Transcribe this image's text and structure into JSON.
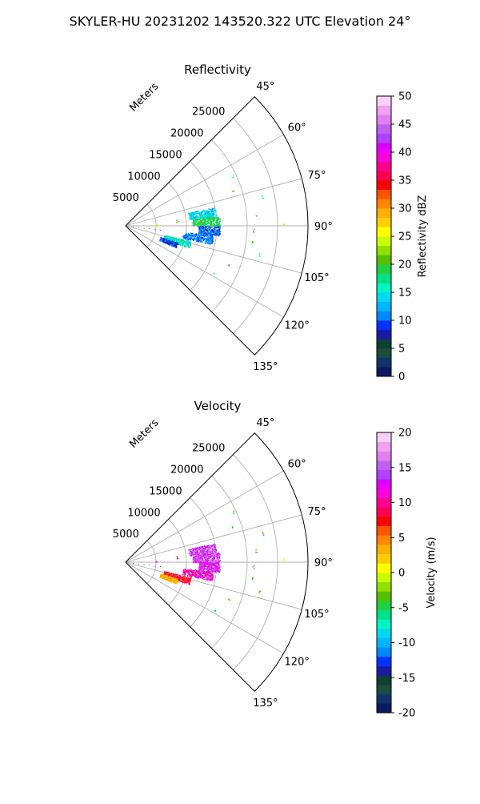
{
  "page": {
    "title": "SKYLER-HU  20231202  143520.322 UTC Elevation 24°"
  },
  "chart_data": [
    {
      "type": "polar-sector",
      "title": "Reflectivity",
      "radial_label": "Meters",
      "radial_ticks": [
        5000,
        10000,
        15000,
        20000,
        25000
      ],
      "radial_range": [
        0,
        30000
      ],
      "angle_ticks": [
        "45°",
        "60°",
        "75°",
        "90°",
        "105°",
        "120°",
        "135°"
      ],
      "angle_range_deg": [
        45,
        135
      ],
      "grid": true,
      "colorbar": {
        "label": "Reflectivity dBZ",
        "range": [
          0,
          50
        ],
        "ticks": [
          0,
          5,
          10,
          15,
          20,
          25,
          30,
          35,
          40,
          45,
          50
        ],
        "colors": [
          "#0d1a5e",
          "#12326b",
          "#1a4d3a",
          "#103e30",
          "#1a1aa8",
          "#0033ff",
          "#0088ff",
          "#00b4ff",
          "#00d8f0",
          "#00f5c0",
          "#00e088",
          "#22d040",
          "#55c000",
          "#90e000",
          "#c8ff00",
          "#ffff00",
          "#ffd000",
          "#ffb000",
          "#ff8800",
          "#ff5500",
          "#ff0000",
          "#ff0050",
          "#ff0090",
          "#ff00d8",
          "#e000ff",
          "#b040ff",
          "#c060f0",
          "#e080f0",
          "#f0a0f0",
          "#f8d0f8"
        ]
      },
      "echo_regions": [
        {
          "az_deg": [
            78,
            84
          ],
          "range_m": [
            10500,
            15000
          ],
          "value": 14
        },
        {
          "az_deg": [
            84,
            90
          ],
          "range_m": [
            11000,
            15500
          ],
          "value": 19
        },
        {
          "az_deg": [
            90,
            96
          ],
          "range_m": [
            12000,
            15500
          ],
          "value": 10
        },
        {
          "az_deg": [
            96,
            102
          ],
          "range_m": [
            9500,
            14500
          ],
          "value": 11
        },
        {
          "az_deg": [
            103,
            109
          ],
          "range_m": [
            6500,
            11000
          ],
          "value": 16
        },
        {
          "az_deg": [
            108,
            113
          ],
          "range_m": [
            6000,
            9000
          ],
          "value": 9
        }
      ],
      "scattered_echoes": [
        {
          "az_deg": 65,
          "range_m": 19500,
          "value": 16
        },
        {
          "az_deg": 72,
          "range_m": 18500,
          "value": 20
        },
        {
          "az_deg": 78,
          "range_m": 23000,
          "value": 16
        },
        {
          "az_deg": 85,
          "range_m": 21500,
          "value": 16
        },
        {
          "az_deg": 89,
          "range_m": 26000,
          "value": 24
        },
        {
          "az_deg": 92,
          "range_m": 21000,
          "value": 20
        },
        {
          "az_deg": 97,
          "range_m": 21000,
          "value": 20
        },
        {
          "az_deg": 102,
          "range_m": 22500,
          "value": 16
        },
        {
          "az_deg": 110,
          "range_m": 18000,
          "value": 12
        },
        {
          "az_deg": 118,
          "range_m": 16500,
          "value": 16
        },
        {
          "az_deg": 84,
          "range_m": 8500,
          "value": 20
        },
        {
          "az_deg": 88,
          "range_m": 5000,
          "value": 24
        }
      ]
    },
    {
      "type": "polar-sector",
      "title": "Velocity",
      "radial_label": "Meters",
      "radial_ticks": [
        5000,
        10000,
        15000,
        20000,
        25000
      ],
      "radial_range": [
        0,
        30000
      ],
      "angle_ticks": [
        "45°",
        "60°",
        "75°",
        "90°",
        "105°",
        "120°",
        "135°"
      ],
      "angle_range_deg": [
        45,
        135
      ],
      "grid": true,
      "colorbar": {
        "label": "Velocity (m/s)",
        "range": [
          -20,
          20
        ],
        "ticks": [
          -20,
          -15,
          -10,
          -5,
          0,
          5,
          10,
          15,
          20
        ],
        "colors": [
          "#0d1a5e",
          "#12326b",
          "#1a4d3a",
          "#103e30",
          "#1a1aa8",
          "#0033ff",
          "#0088ff",
          "#00b4ff",
          "#00d8f0",
          "#00f5c0",
          "#00e088",
          "#22d040",
          "#55c000",
          "#90e000",
          "#c8ff00",
          "#ffff00",
          "#ffd000",
          "#ffb000",
          "#ff8800",
          "#ff5500",
          "#ff0000",
          "#ff0050",
          "#ff0090",
          "#ff00d8",
          "#e000ff",
          "#b040ff",
          "#c060f0",
          "#e080f0",
          "#f0a0f0",
          "#f8d0f8"
        ]
      },
      "echo_regions": [
        {
          "az_deg": [
            78,
            84
          ],
          "range_m": [
            10500,
            15000
          ],
          "value": 14
        },
        {
          "az_deg": [
            84,
            90
          ],
          "range_m": [
            11000,
            15500
          ],
          "value": 14
        },
        {
          "az_deg": [
            90,
            96
          ],
          "range_m": [
            12000,
            15500
          ],
          "value": 13
        },
        {
          "az_deg": [
            96,
            102
          ],
          "range_m": [
            9500,
            14500
          ],
          "value": 11
        },
        {
          "az_deg": [
            103,
            109
          ],
          "range_m": [
            6500,
            11000
          ],
          "value": 8
        },
        {
          "az_deg": [
            108,
            113
          ],
          "range_m": [
            6000,
            9000
          ],
          "value": 3
        }
      ],
      "scattered_echoes": [
        {
          "az_deg": 65,
          "range_m": 19500,
          "value": -4
        },
        {
          "az_deg": 72,
          "range_m": 18500,
          "value": -3
        },
        {
          "az_deg": 78,
          "range_m": 23000,
          "value": -4
        },
        {
          "az_deg": 85,
          "range_m": 21500,
          "value": -4
        },
        {
          "az_deg": 89,
          "range_m": 26000,
          "value": 1
        },
        {
          "az_deg": 92,
          "range_m": 21000,
          "value": -3
        },
        {
          "az_deg": 97,
          "range_m": 21000,
          "value": -3
        },
        {
          "az_deg": 102,
          "range_m": 22500,
          "value": -4
        },
        {
          "az_deg": 110,
          "range_m": 18000,
          "value": -5
        },
        {
          "az_deg": 118,
          "range_m": 16500,
          "value": -6
        },
        {
          "az_deg": 84,
          "range_m": 8500,
          "value": 9
        },
        {
          "az_deg": 88,
          "range_m": 5000,
          "value": 12
        }
      ]
    }
  ]
}
